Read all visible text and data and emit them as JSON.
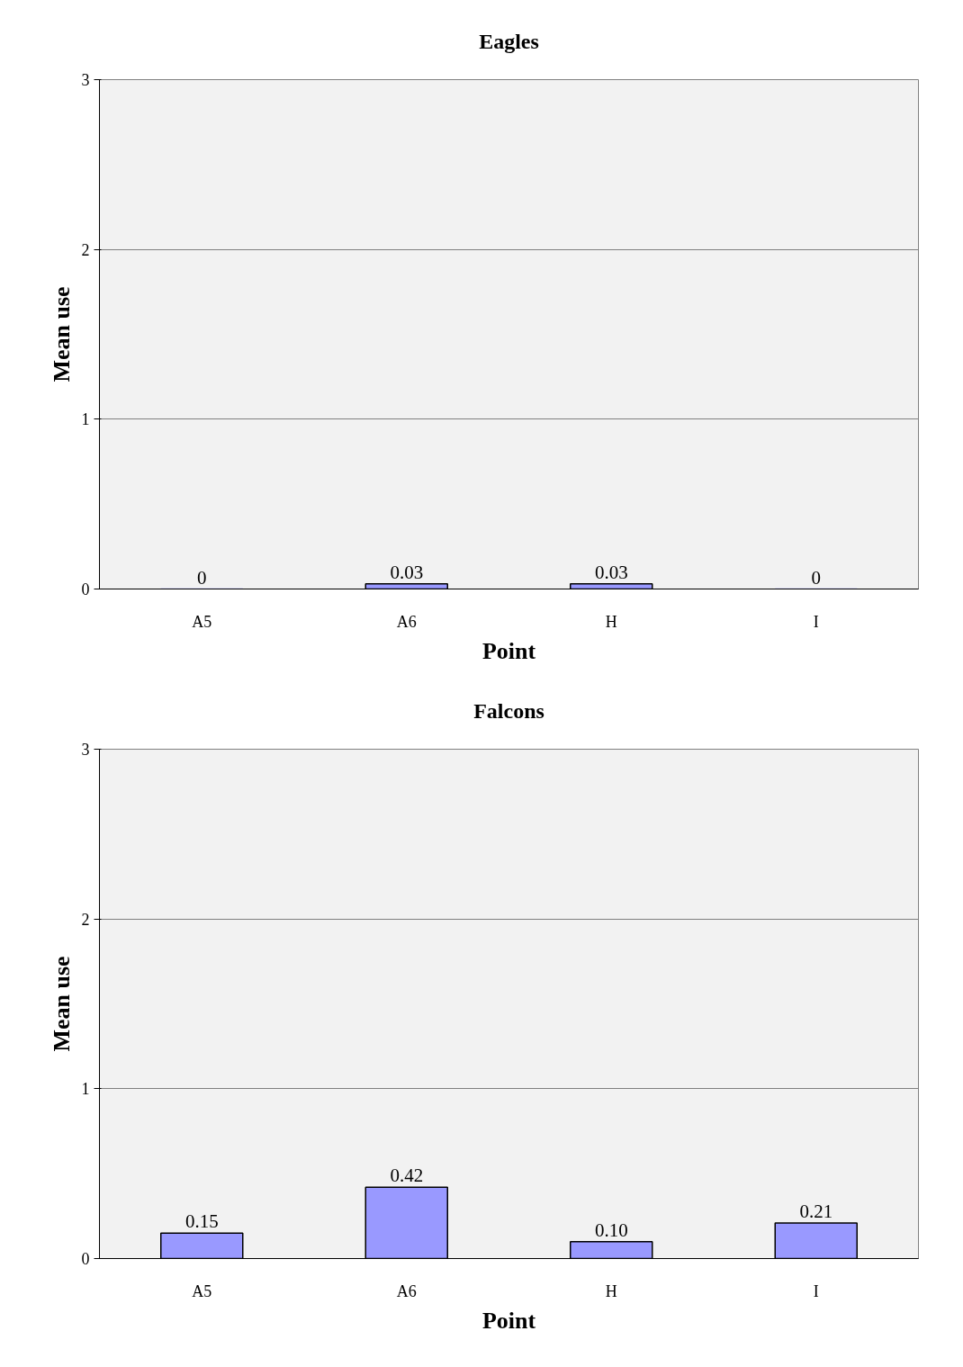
{
  "chart_data": [
    {
      "type": "bar",
      "title": "Eagles",
      "xlabel": "Point",
      "ylabel": "Mean use",
      "categories": [
        "A5",
        "A6",
        "H",
        "I"
      ],
      "values": [
        0,
        0.03,
        0.03,
        0
      ],
      "value_labels": [
        "0",
        "0.03",
        "0.03",
        "0"
      ],
      "color": "#9999ff",
      "ylim": [
        0,
        3
      ],
      "yticks": [
        0,
        1,
        2,
        3
      ],
      "grid": "y"
    },
    {
      "type": "bar",
      "title": "Falcons",
      "xlabel": "Point",
      "ylabel": "Mean use",
      "categories": [
        "A5",
        "A6",
        "H",
        "I"
      ],
      "values": [
        0.15,
        0.42,
        0.1,
        0.21
      ],
      "value_labels": [
        "0.15",
        "0.42",
        "0.10",
        "0.21"
      ],
      "color": "#9999ff",
      "ylim": [
        0,
        3
      ],
      "yticks": [
        0,
        1,
        2,
        3
      ],
      "grid": "y"
    }
  ]
}
